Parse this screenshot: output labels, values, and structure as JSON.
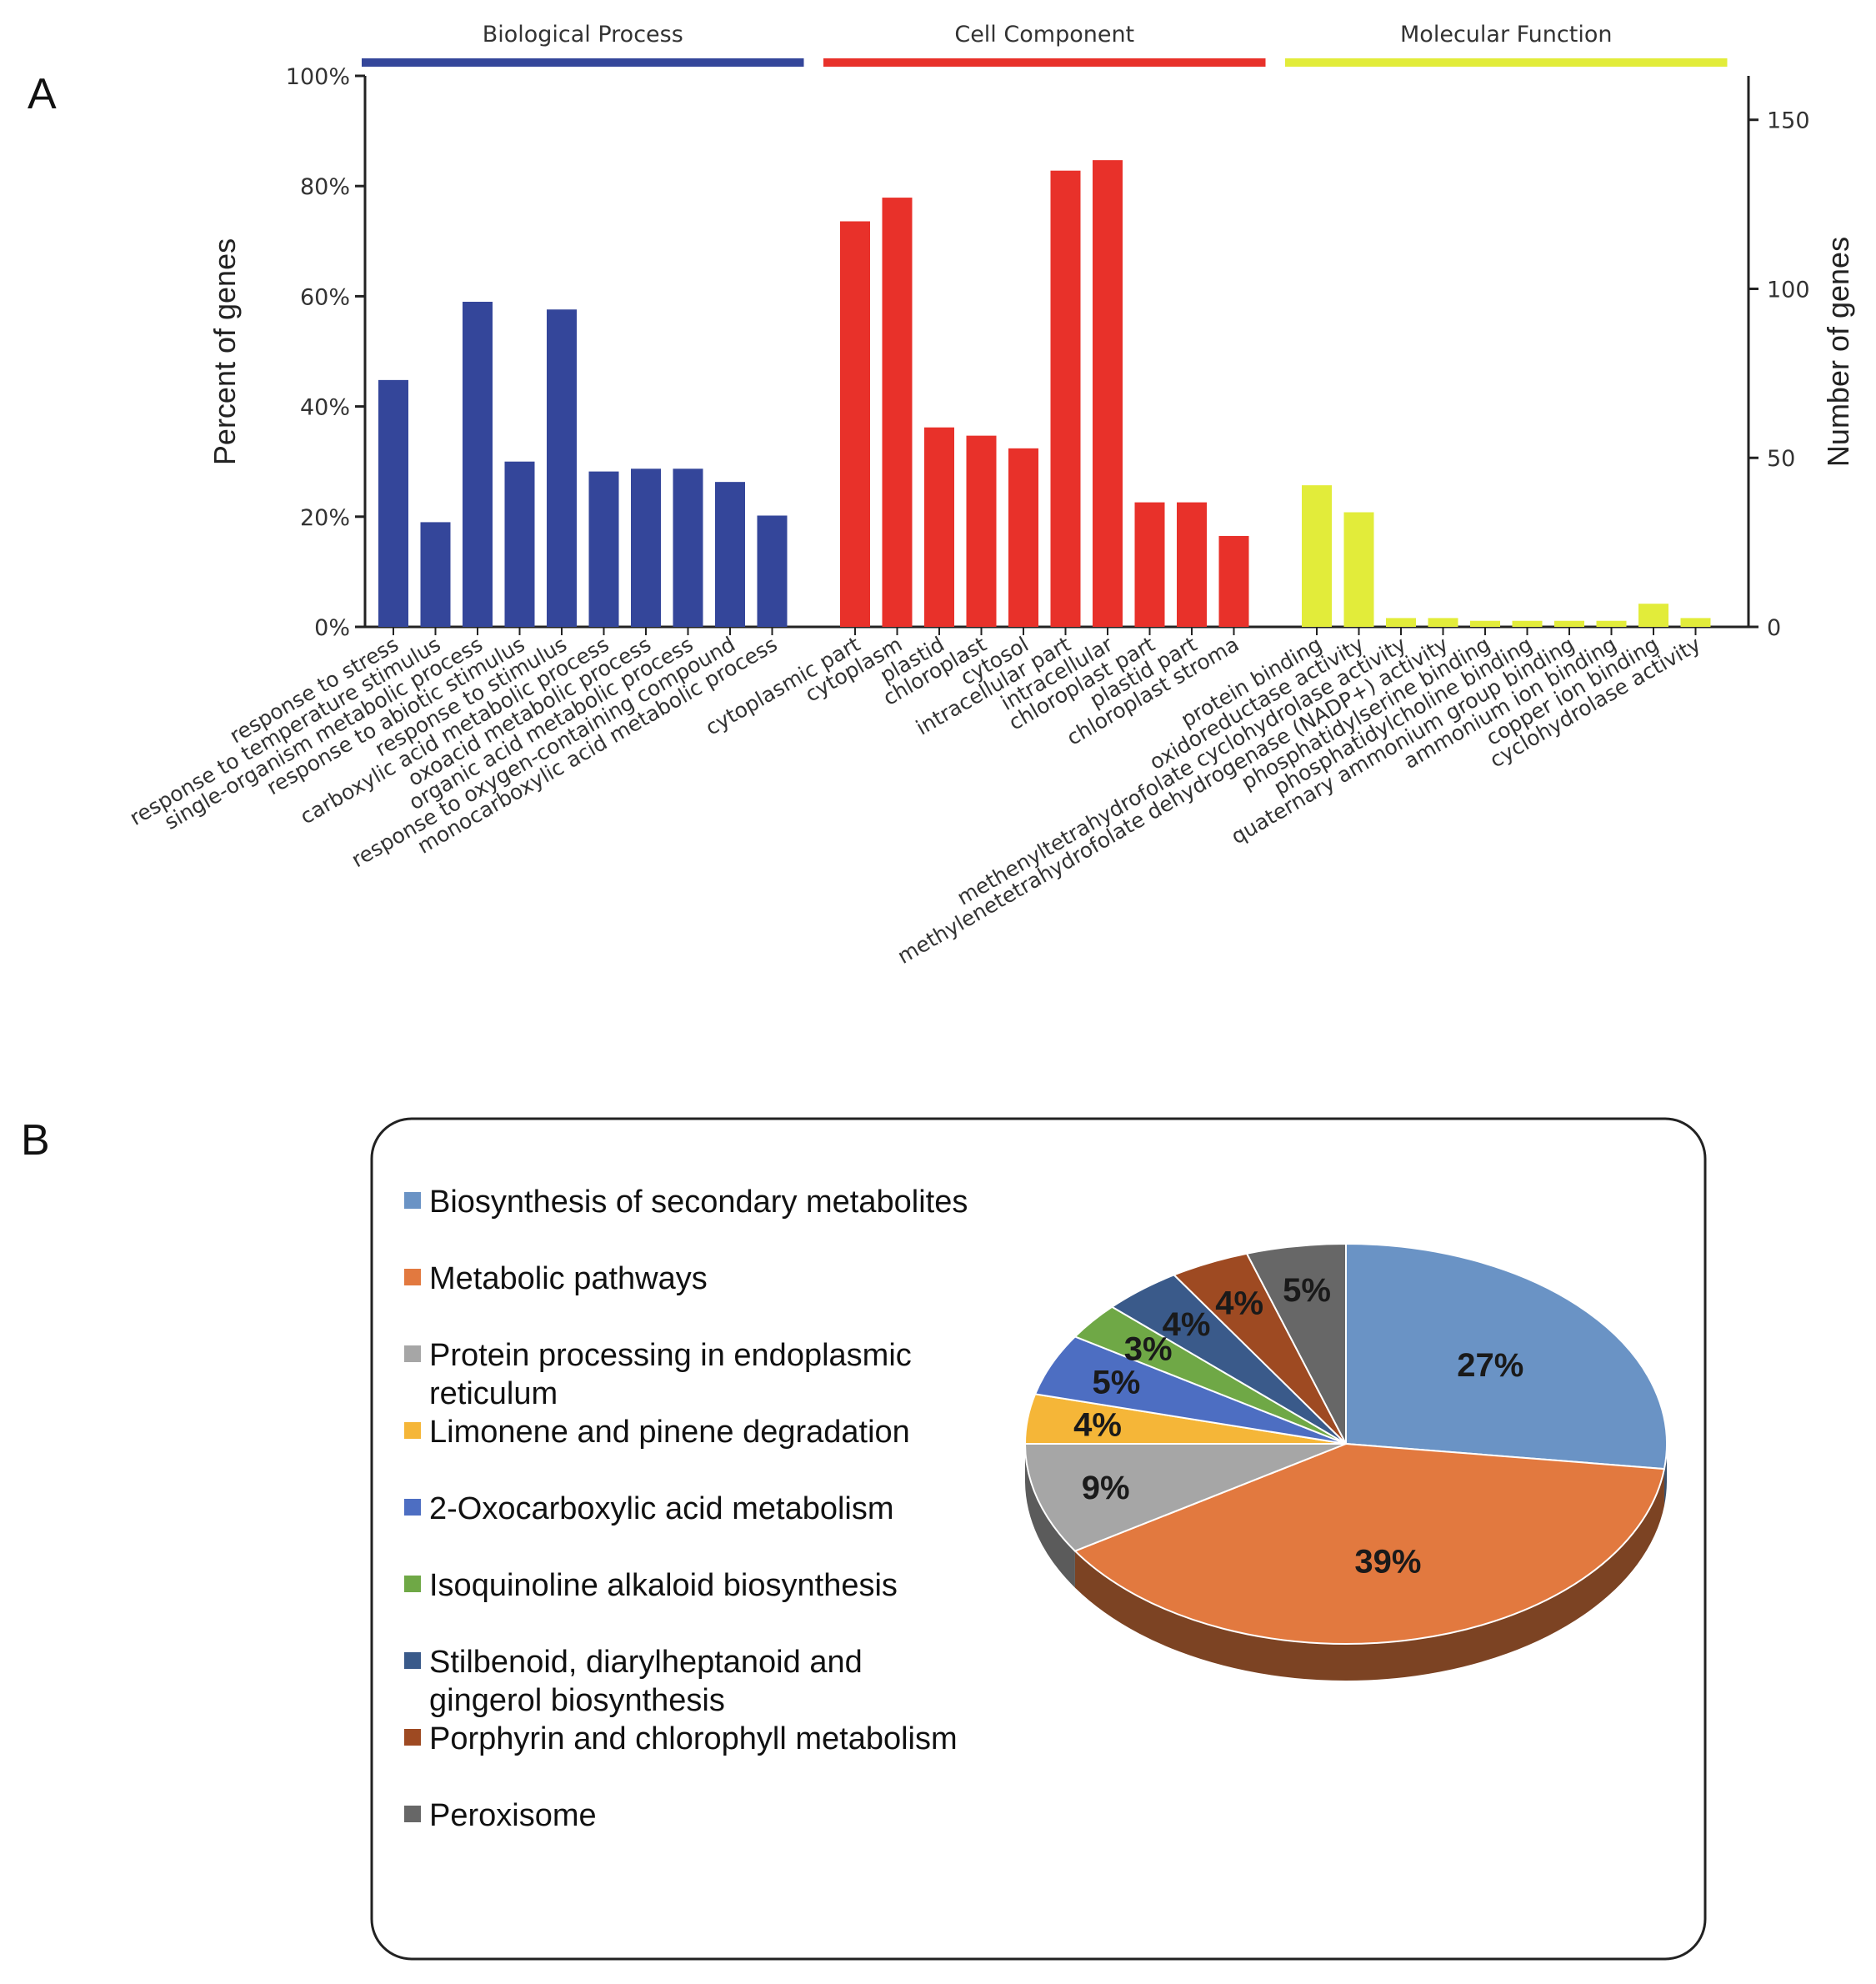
{
  "panel_a_label": "A",
  "panel_b_label": "B",
  "chart_data": [
    {
      "type": "bar",
      "ylabel": "Percent of genes",
      "y2label": "Number of genes",
      "ylim": [
        0,
        100
      ],
      "y2lim": [
        0,
        163
      ],
      "yticks": [
        "0%",
        "20%",
        "40%",
        "60%",
        "80%",
        "100%"
      ],
      "y2ticks": [
        "0",
        "50",
        "100",
        "150"
      ],
      "groups": [
        {
          "name": "Biological Process",
          "color": "#34469a",
          "categories": [
            "response to stress",
            "response to temperature stimulus",
            "single-organism metabolic process",
            "response to abiotic stimulus",
            "response to stimulus",
            "carboxylic acid metabolic process",
            "oxoacid metabolic process",
            "organic acid metabolic process",
            "response to oxygen-containing compound",
            "monocarboxylic acid metabolic process"
          ],
          "values": [
            44.8,
            19,
            59,
            30,
            57.6,
            28.2,
            28.7,
            28.7,
            26.3,
            20.2
          ]
        },
        {
          "name": "Cell Component",
          "color": "#e8312a",
          "categories": [
            "cytoplasmic part",
            "cytoplasm",
            "plastid",
            "chloroplast",
            "cytosol",
            "intracellular part",
            "intracellular",
            "chloroplast part",
            "plastid part",
            "chloroplast stroma"
          ],
          "values": [
            73.6,
            77.9,
            36.2,
            34.7,
            32.4,
            82.8,
            84.7,
            22.6,
            22.6,
            16.5
          ]
        },
        {
          "name": "Molecular Function",
          "color": "#e2ec3a",
          "categories": [
            "protein binding",
            "oxidoreductase activity",
            "methenyltetrahydrofolate cyclohydrolase activity",
            "methylenetetrahydrofolate dehydrogenase (NADP+) activity",
            "phosphatidylserine binding",
            "phosphatidylcholine binding",
            "quaternary ammonium group binding",
            "ammonium ion binding",
            "copper ion binding",
            "cyclohydrolase activity"
          ],
          "values": [
            25.7,
            20.8,
            1.6,
            1.6,
            1.1,
            1.1,
            1.1,
            1.1,
            4.2,
            1.6
          ]
        }
      ]
    },
    {
      "type": "pie",
      "legend": "left",
      "slices": [
        {
          "name": "Biosynthesis of secondary metabolites",
          "value": 27,
          "label": "27%",
          "color": "#6a93c5"
        },
        {
          "name": "Metabolic pathways",
          "value": 39,
          "label": "39%",
          "color": "#e2793f"
        },
        {
          "name": "Protein processing in endoplasmic reticulum",
          "value": 9,
          "label": "9%",
          "color": "#a6a6a6"
        },
        {
          "name": "Limonene and pinene degradation",
          "value": 4,
          "label": "4%",
          "color": "#f5b638"
        },
        {
          "name": "2-Oxocarboxylic acid metabolism",
          "value": 5,
          "label": "5%",
          "color": "#4d6ec2"
        },
        {
          "name": "Isoquinoline alkaloid biosynthesis",
          "value": 3,
          "label": "3%",
          "color": "#6fa846"
        },
        {
          "name": "Stilbenoid, diarylheptanoid and gingerol biosynthesis",
          "value": 4,
          "label": "4%",
          "color": "#3a5a8a"
        },
        {
          "name": "Porphyrin and chlorophyll metabolism",
          "value": 4,
          "label": "4%",
          "color": "#9e4a22"
        },
        {
          "name": "Peroxisome",
          "value": 5,
          "label": "5%",
          "color": "#676767"
        }
      ]
    }
  ]
}
